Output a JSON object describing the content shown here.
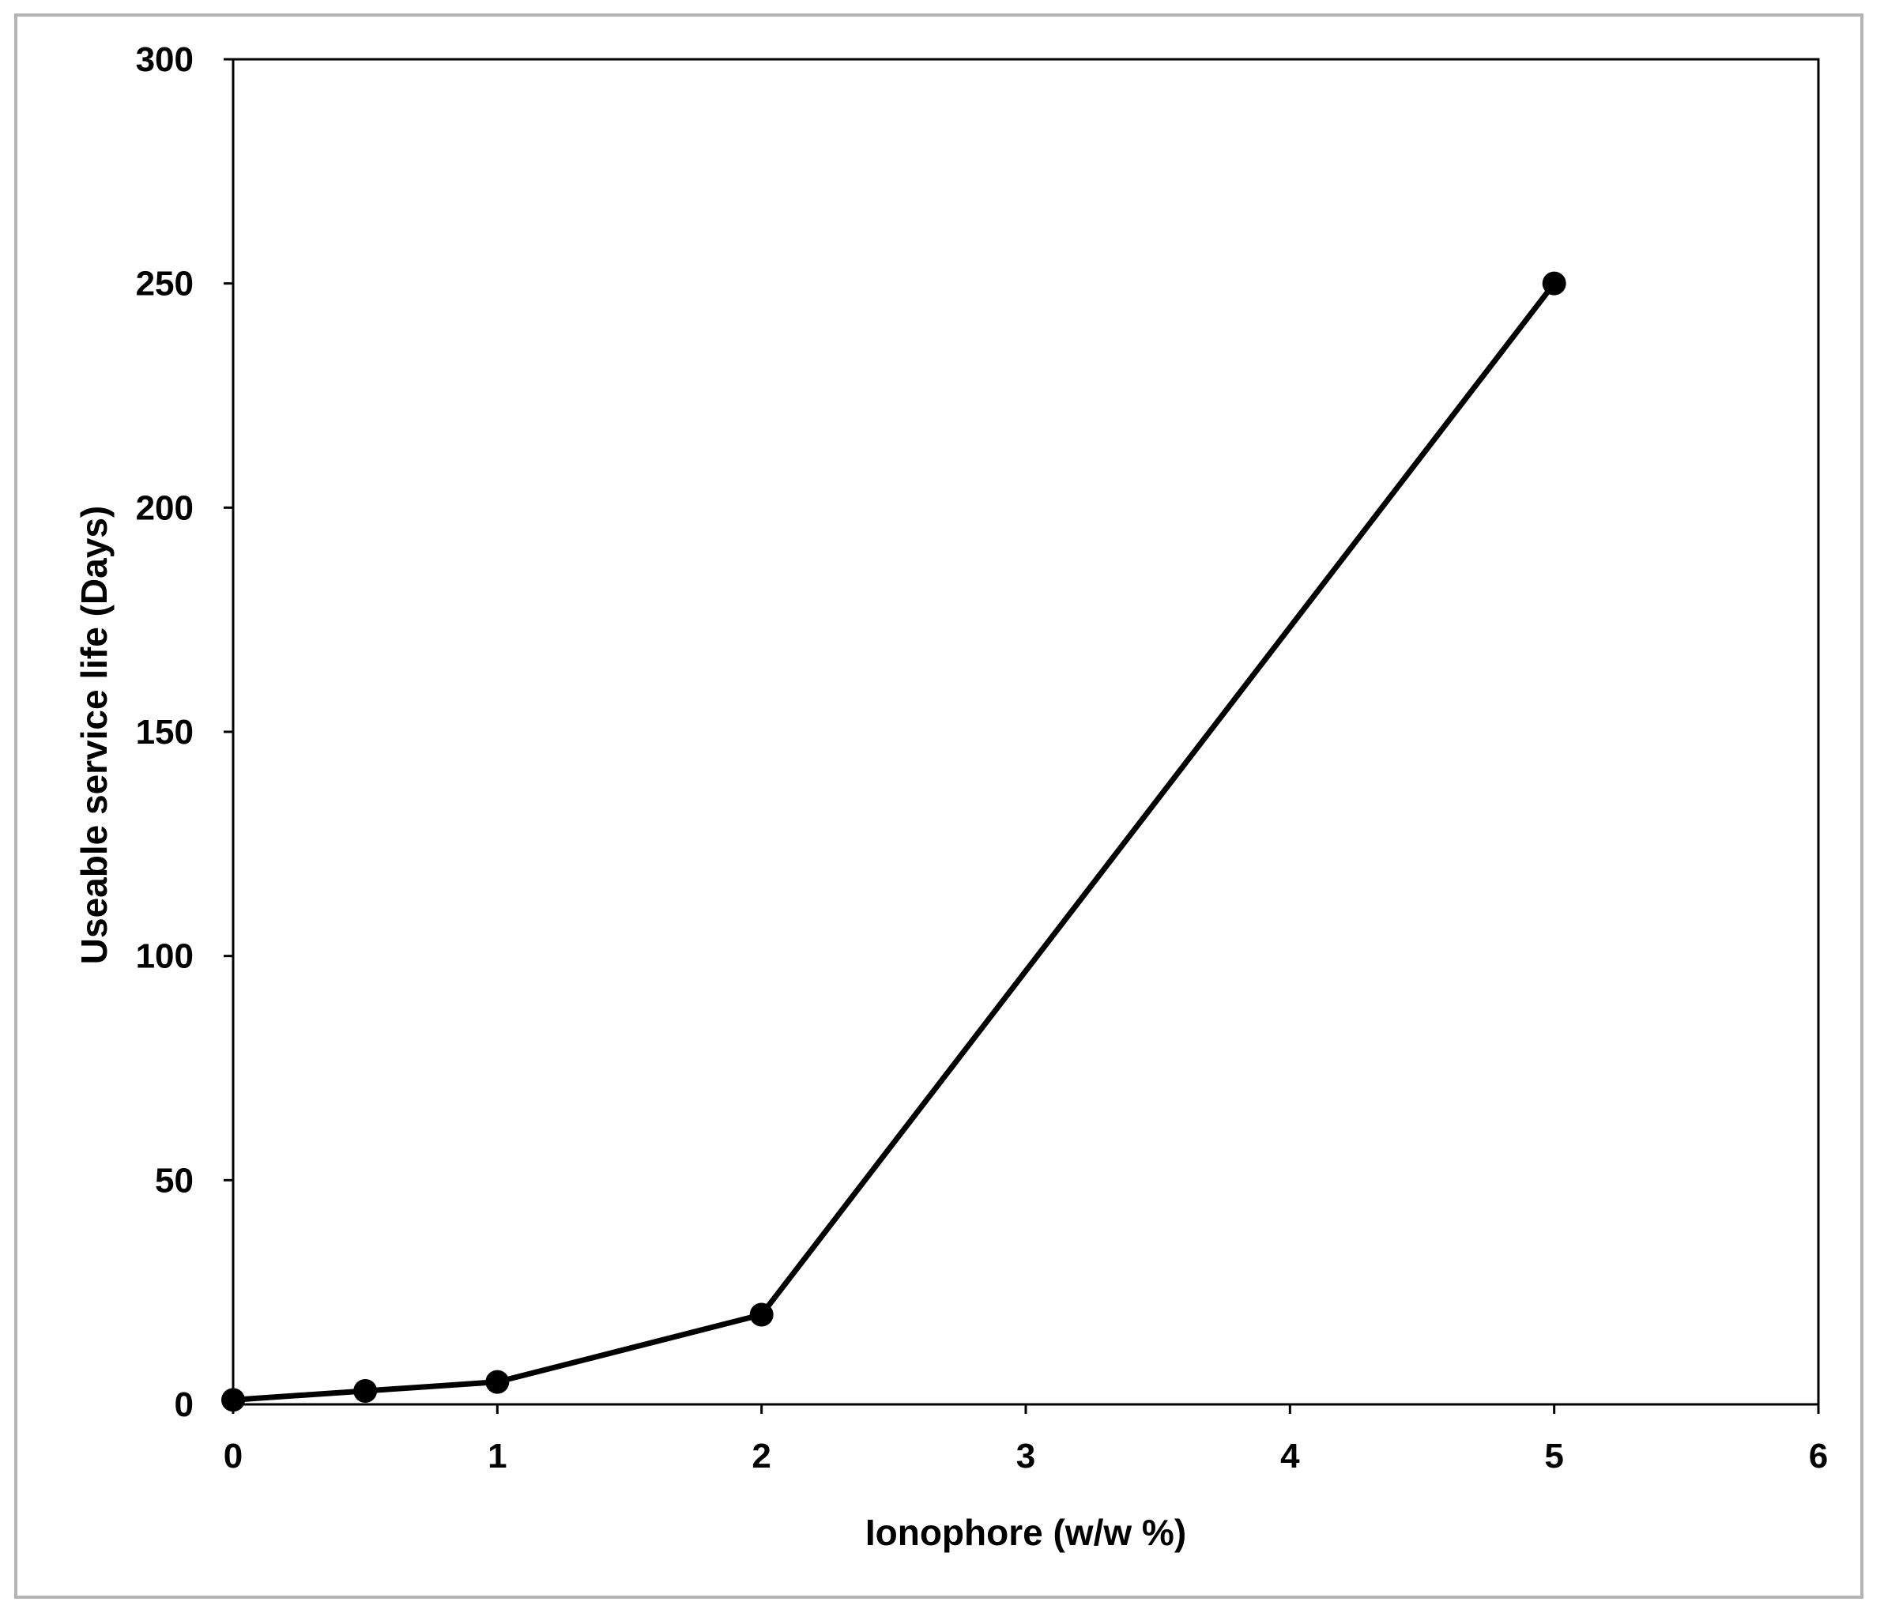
{
  "chart_data": {
    "type": "line",
    "title": "",
    "xlabel": "Ionophore (w/w %)",
    "ylabel": "Useable service life (Days)",
    "xlim": [
      0,
      6
    ],
    "ylim": [
      0,
      300
    ],
    "xticks": [
      0,
      1,
      2,
      3,
      4,
      5,
      6
    ],
    "yticks": [
      0,
      50,
      100,
      150,
      200,
      250,
      300
    ],
    "grid": false,
    "legend": "none",
    "series": [
      {
        "color": "#000000",
        "marker": "filled-circle",
        "points": [
          {
            "x": 0,
            "y": 1
          },
          {
            "x": 0.5,
            "y": 3
          },
          {
            "x": 1,
            "y": 5
          },
          {
            "x": 2,
            "y": 20
          },
          {
            "x": 5,
            "y": 250
          }
        ]
      }
    ]
  }
}
